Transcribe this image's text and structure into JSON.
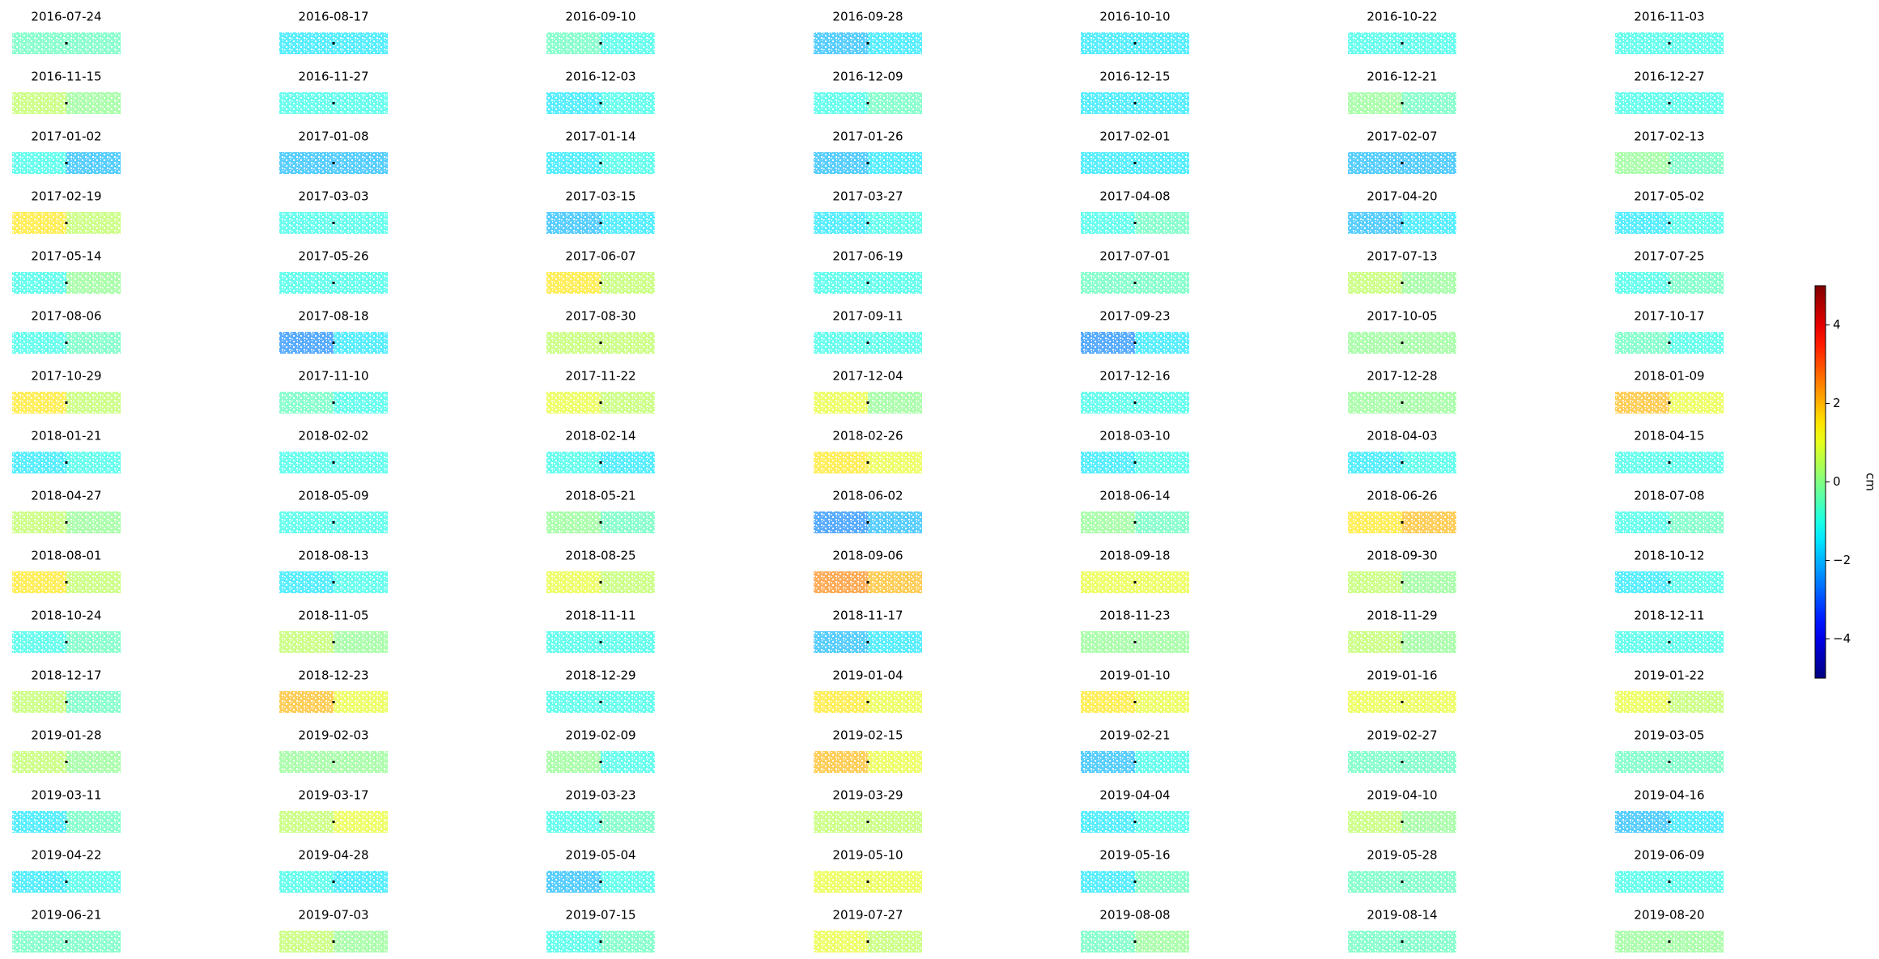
{
  "chart_data": {
    "type": "panels",
    "colormap": "jet",
    "panels": [
      {
        "title": "2016-07-24",
        "values": [
          -0.5,
          -0.5
        ]
      },
      {
        "title": "2016-08-17",
        "values": [
          -1.5,
          -1.5
        ]
      },
      {
        "title": "2016-09-10",
        "values": [
          -0.5,
          -1
        ]
      },
      {
        "title": "2016-09-28",
        "values": [
          -2,
          -1.5
        ]
      },
      {
        "title": "2016-10-10",
        "values": [
          -1.5,
          -1.5
        ]
      },
      {
        "title": "2016-10-22",
        "values": [
          -1,
          -1
        ]
      },
      {
        "title": "2016-11-03",
        "values": [
          -1,
          -1
        ]
      },
      {
        "title": "2016-11-15",
        "values": [
          0.5,
          0
        ]
      },
      {
        "title": "2016-11-27",
        "values": [
          -1,
          -1
        ]
      },
      {
        "title": "2016-12-03",
        "values": [
          -1.5,
          -1
        ]
      },
      {
        "title": "2016-12-09",
        "values": [
          -1,
          -0.5
        ]
      },
      {
        "title": "2016-12-15",
        "values": [
          -1.5,
          -1.5
        ]
      },
      {
        "title": "2016-12-21",
        "values": [
          0,
          -0.5
        ]
      },
      {
        "title": "2016-12-27",
        "values": [
          -1,
          -1
        ]
      },
      {
        "title": "2017-01-02",
        "values": [
          -1,
          -2
        ]
      },
      {
        "title": "2017-01-08",
        "values": [
          -2,
          -2
        ]
      },
      {
        "title": "2017-01-14",
        "values": [
          -1.5,
          -1
        ]
      },
      {
        "title": "2017-01-26",
        "values": [
          -2,
          -1.5
        ]
      },
      {
        "title": "2017-02-01",
        "values": [
          -1.5,
          -1.5
        ]
      },
      {
        "title": "2017-02-07",
        "values": [
          -2,
          -2
        ]
      },
      {
        "title": "2017-02-13",
        "values": [
          0,
          -0.5
        ]
      },
      {
        "title": "2017-02-19",
        "values": [
          1.5,
          0.5
        ]
      },
      {
        "title": "2017-03-03",
        "values": [
          -1,
          -1
        ]
      },
      {
        "title": "2017-03-15",
        "values": [
          -2,
          -1.5
        ]
      },
      {
        "title": "2017-03-27",
        "values": [
          -1.5,
          -1
        ]
      },
      {
        "title": "2017-04-08",
        "values": [
          -1,
          -0.5
        ]
      },
      {
        "title": "2017-04-20",
        "values": [
          -2,
          -1.5
        ]
      },
      {
        "title": "2017-05-02",
        "values": [
          -1.5,
          -1
        ]
      },
      {
        "title": "2017-05-14",
        "values": [
          -1,
          0
        ]
      },
      {
        "title": "2017-05-26",
        "values": [
          -1,
          -1
        ]
      },
      {
        "title": "2017-06-07",
        "values": [
          1.5,
          0.5
        ]
      },
      {
        "title": "2017-06-19",
        "values": [
          -1,
          -1
        ]
      },
      {
        "title": "2017-07-01",
        "values": [
          -0.5,
          -0.5
        ]
      },
      {
        "title": "2017-07-13",
        "values": [
          0.5,
          0
        ]
      },
      {
        "title": "2017-07-25",
        "values": [
          -1,
          -0.5
        ]
      },
      {
        "title": "2017-08-06",
        "values": [
          -1,
          -0.5
        ]
      },
      {
        "title": "2017-08-18",
        "values": [
          -2.5,
          -1.5
        ]
      },
      {
        "title": "2017-08-30",
        "values": [
          0.5,
          0.5
        ]
      },
      {
        "title": "2017-09-11",
        "values": [
          -1,
          -1
        ]
      },
      {
        "title": "2017-09-23",
        "values": [
          -2.5,
          -1.5
        ]
      },
      {
        "title": "2017-10-05",
        "values": [
          0,
          0
        ]
      },
      {
        "title": "2017-10-17",
        "values": [
          -0.5,
          -1
        ]
      },
      {
        "title": "2017-10-29",
        "values": [
          1.5,
          0.5
        ]
      },
      {
        "title": "2017-11-10",
        "values": [
          -0.5,
          -1
        ]
      },
      {
        "title": "2017-11-22",
        "values": [
          1,
          0.5
        ]
      },
      {
        "title": "2017-12-04",
        "values": [
          1,
          0
        ]
      },
      {
        "title": "2017-12-16",
        "values": [
          -1,
          -1
        ]
      },
      {
        "title": "2017-12-28",
        "values": [
          0,
          0
        ]
      },
      {
        "title": "2018-01-09",
        "values": [
          2,
          1
        ]
      },
      {
        "title": "2018-01-21",
        "values": [
          -1.5,
          -1
        ]
      },
      {
        "title": "2018-02-02",
        "values": [
          -1,
          -1
        ]
      },
      {
        "title": "2018-02-14",
        "values": [
          -1,
          -1.5
        ]
      },
      {
        "title": "2018-02-26",
        "values": [
          1.5,
          1
        ]
      },
      {
        "title": "2018-03-10",
        "values": [
          -1.5,
          -1
        ]
      },
      {
        "title": "2018-04-03",
        "values": [
          -1.5,
          -1
        ]
      },
      {
        "title": "2018-04-15",
        "values": [
          -1,
          -1
        ]
      },
      {
        "title": "2018-04-27",
        "values": [
          0.5,
          0
        ]
      },
      {
        "title": "2018-05-09",
        "values": [
          -1,
          -1
        ]
      },
      {
        "title": "2018-05-21",
        "values": [
          0,
          -0.5
        ]
      },
      {
        "title": "2018-06-02",
        "values": [
          -2.5,
          -2
        ]
      },
      {
        "title": "2018-06-14",
        "values": [
          0,
          -0.5
        ]
      },
      {
        "title": "2018-06-26",
        "values": [
          1.5,
          2
        ]
      },
      {
        "title": "2018-07-08",
        "values": [
          -1,
          -0.5
        ]
      },
      {
        "title": "2018-08-01",
        "values": [
          1.5,
          0.5
        ]
      },
      {
        "title": "2018-08-13",
        "values": [
          -1.5,
          -1
        ]
      },
      {
        "title": "2018-08-25",
        "values": [
          1,
          0.5
        ]
      },
      {
        "title": "2018-09-06",
        "values": [
          2.5,
          2
        ]
      },
      {
        "title": "2018-09-18",
        "values": [
          1,
          1
        ]
      },
      {
        "title": "2018-09-30",
        "values": [
          0.5,
          0
        ]
      },
      {
        "title": "2018-10-12",
        "values": [
          -1.5,
          -1
        ]
      },
      {
        "title": "2018-10-24",
        "values": [
          -1,
          -0.5
        ]
      },
      {
        "title": "2018-11-05",
        "values": [
          0.5,
          0
        ]
      },
      {
        "title": "2018-11-11",
        "values": [
          -1,
          -1
        ]
      },
      {
        "title": "2018-11-17",
        "values": [
          -2,
          -1.5
        ]
      },
      {
        "title": "2018-11-23",
        "values": [
          0,
          0
        ]
      },
      {
        "title": "2018-11-29",
        "values": [
          0.5,
          0
        ]
      },
      {
        "title": "2018-12-11",
        "values": [
          -1,
          -1
        ]
      },
      {
        "title": "2018-12-17",
        "values": [
          0.5,
          -0.5
        ]
      },
      {
        "title": "2018-12-23",
        "values": [
          2,
          1
        ]
      },
      {
        "title": "2018-12-29",
        "values": [
          -1,
          -1
        ]
      },
      {
        "title": "2019-01-04",
        "values": [
          1.5,
          1
        ]
      },
      {
        "title": "2019-01-10",
        "values": [
          1.5,
          1
        ]
      },
      {
        "title": "2019-01-16",
        "values": [
          1,
          1
        ]
      },
      {
        "title": "2019-01-22",
        "values": [
          1,
          0.5
        ]
      },
      {
        "title": "2019-01-28",
        "values": [
          0.5,
          0
        ]
      },
      {
        "title": "2019-02-03",
        "values": [
          0,
          0
        ]
      },
      {
        "title": "2019-02-09",
        "values": [
          0,
          -1
        ]
      },
      {
        "title": "2019-02-15",
        "values": [
          2,
          1
        ]
      },
      {
        "title": "2019-02-21",
        "values": [
          -2,
          -1
        ]
      },
      {
        "title": "2019-02-27",
        "values": [
          -0.5,
          -0.5
        ]
      },
      {
        "title": "2019-03-05",
        "values": [
          -0.5,
          -0.5
        ]
      },
      {
        "title": "2019-03-11",
        "values": [
          -1.5,
          -0.5
        ]
      },
      {
        "title": "2019-03-17",
        "values": [
          0.5,
          1
        ]
      },
      {
        "title": "2019-03-23",
        "values": [
          -1,
          -0.5
        ]
      },
      {
        "title": "2019-03-29",
        "values": [
          0.5,
          0.5
        ]
      },
      {
        "title": "2019-04-04",
        "values": [
          -1.5,
          -1
        ]
      },
      {
        "title": "2019-04-10",
        "values": [
          0.5,
          0
        ]
      },
      {
        "title": "2019-04-16",
        "values": [
          -2,
          -1.5
        ]
      },
      {
        "title": "2019-04-22",
        "values": [
          -1.5,
          -1
        ]
      },
      {
        "title": "2019-04-28",
        "values": [
          -1,
          -1.5
        ]
      },
      {
        "title": "2019-05-04",
        "values": [
          -2,
          -1
        ]
      },
      {
        "title": "2019-05-10",
        "values": [
          1,
          1
        ]
      },
      {
        "title": "2019-05-16",
        "values": [
          -1.5,
          -0.5
        ]
      },
      {
        "title": "2019-05-28",
        "values": [
          -0.5,
          -0.5
        ]
      },
      {
        "title": "2019-06-09",
        "values": [
          -1,
          -1
        ]
      },
      {
        "title": "2019-06-21",
        "values": [
          -0.5,
          -0.5
        ]
      },
      {
        "title": "2019-07-03",
        "values": [
          0.5,
          0
        ]
      },
      {
        "title": "2019-07-15",
        "values": [
          -1,
          -0.5
        ]
      },
      {
        "title": "2019-07-27",
        "values": [
          1,
          0.5
        ]
      },
      {
        "title": "2019-08-08",
        "values": [
          -0.5,
          0
        ]
      },
      {
        "title": "2019-08-14",
        "values": [
          -0.5,
          -0.5
        ]
      },
      {
        "title": "2019-08-20",
        "values": [
          0,
          0
        ]
      }
    ],
    "colorbar": {
      "label": "cm",
      "lim": [
        -5,
        5
      ],
      "ticks": [
        {
          "value": -4,
          "label": "−4"
        },
        {
          "value": -2,
          "label": "−2"
        },
        0,
        2,
        4
      ]
    }
  }
}
